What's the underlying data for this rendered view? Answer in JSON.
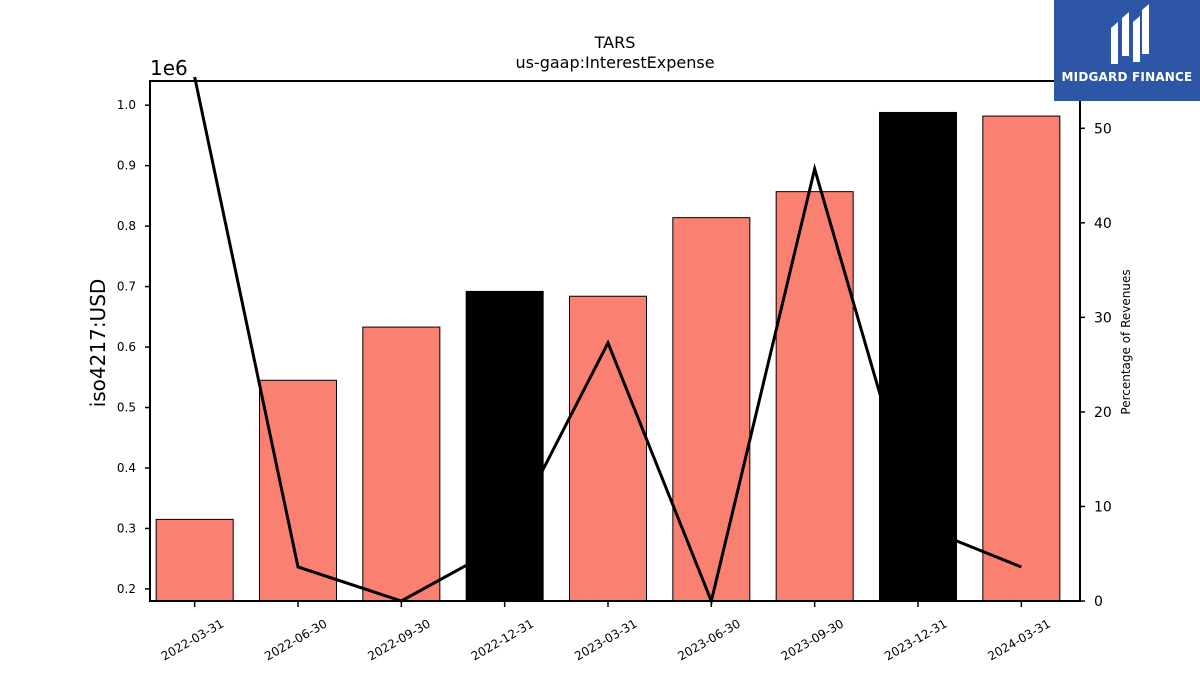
{
  "brand": {
    "name": "MIDGARD FINANCE",
    "bg": "#2d56a6"
  },
  "chart_data": {
    "type": "bar",
    "title": "TARS",
    "subtitle": "us-gaap:InterestExpense",
    "ylabel": "iso4217:USD",
    "y2label": "Percentage of Revenues",
    "y_offset_label": "1e6",
    "categories": [
      "2022-03-31",
      "2022-06-30",
      "2022-09-30",
      "2022-12-31",
      "2023-03-31",
      "2023-06-30",
      "2023-09-30",
      "2023-12-31",
      "2024-03-31"
    ],
    "values": [
      315000,
      545000,
      633000,
      692000,
      684000,
      814000,
      857000,
      988000,
      982000
    ],
    "bar_colors": [
      "#fa8072",
      "#fa8072",
      "#fa8072",
      "#000000",
      "#fa8072",
      "#fa8072",
      "#fa8072",
      "#000000",
      "#fa8072"
    ],
    "ylim": [
      0.18,
      1.04
    ],
    "yticks": [
      "0.2",
      "0.3",
      "0.4",
      "0.5",
      "0.6",
      "0.7",
      "0.8",
      "0.9",
      "1.0"
    ],
    "y2lim": [
      0,
      55
    ],
    "y2ticks": [
      "0",
      "10",
      "20",
      "30",
      "40",
      "50"
    ],
    "line_series": {
      "values": [
        56,
        3.6,
        0,
        6,
        27.3,
        0,
        45.7,
        8,
        3.6
      ],
      "color": "#000000"
    },
    "grid": false
  }
}
